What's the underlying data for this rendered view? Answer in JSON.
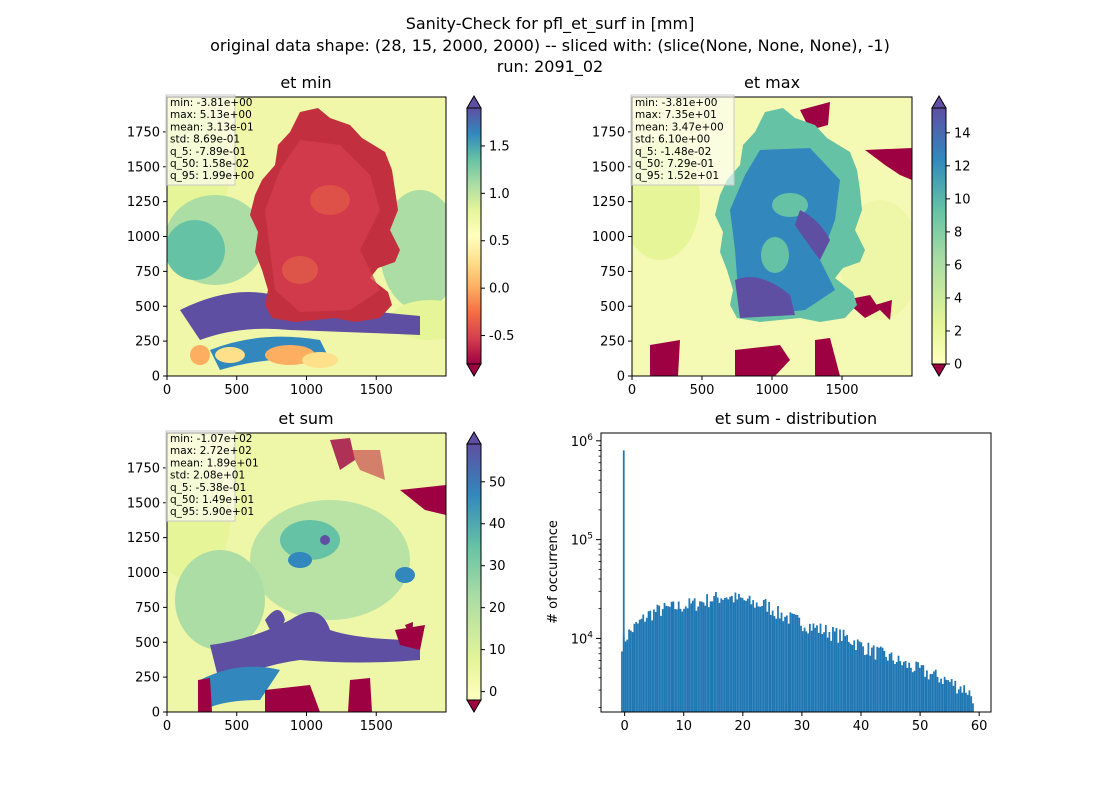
{
  "figure": {
    "title_lines": [
      "Sanity-Check for pfl_et_surf in [mm]",
      "original data shape: (28, 15, 2000, 2000) -- sliced with: (slice(None, None, None), -1)",
      "run: 2091_02"
    ]
  },
  "colors": {
    "spectral_r": [
      "#9e0142",
      "#d53e4f",
      "#f46d43",
      "#fdae61",
      "#fee08b",
      "#ffffbf",
      "#e6f598",
      "#abdda4",
      "#66c2a5",
      "#3288bd",
      "#5e4fa2"
    ],
    "histogram_bar": "#1f77b4"
  },
  "chart_data": [
    {
      "type": "heatmap",
      "title": "et min",
      "image_description_note": "",
      "xlim": [
        0,
        2000
      ],
      "ylim": [
        0,
        2000
      ],
      "xticks": [
        "0",
        "500",
        "1000",
        "1500"
      ],
      "yticks": [
        "0",
        "250",
        "500",
        "750",
        "1000",
        "1250",
        "1500",
        "1750"
      ],
      "colorbar": {
        "vmin": -0.8,
        "vmax": 1.9,
        "ticks": [
          "-0.5",
          "0.0",
          "0.5",
          "1.0",
          "1.5"
        ],
        "tick_values": [
          -0.5,
          0.0,
          0.5,
          1.0,
          1.5
        ],
        "extend": "both"
      },
      "stats": [
        "min: -3.81e+00",
        "max: 5.13e+00",
        "mean: 3.13e-01",
        "std: 8.69e-01",
        "q_5: -7.89e-01",
        "q_50: 1.58e-02",
        "q_95: 1.99e+00"
      ]
    },
    {
      "type": "heatmap",
      "title": "et max",
      "xlim": [
        0,
        2000
      ],
      "ylim": [
        0,
        2000
      ],
      "xticks": [
        "0",
        "500",
        "1000",
        "1500"
      ],
      "yticks": [
        "0",
        "250",
        "500",
        "750",
        "1000",
        "1250",
        "1500",
        "1750"
      ],
      "colorbar": {
        "vmin": 0,
        "vmax": 15.5,
        "ticks": [
          "0",
          "2",
          "4",
          "6",
          "8",
          "10",
          "12",
          "14"
        ],
        "tick_values": [
          0,
          2,
          4,
          6,
          8,
          10,
          12,
          14
        ],
        "extend": "both"
      },
      "stats": [
        "min: -3.81e+00",
        "max: 7.35e+01",
        "mean: 3.47e+00",
        "std: 6.10e+00",
        "q_5: -1.48e-02",
        "q_50: 7.29e-01",
        "q_95: 1.52e+01"
      ]
    },
    {
      "type": "heatmap",
      "title": "et sum",
      "xlim": [
        0,
        2000
      ],
      "ylim": [
        0,
        2000
      ],
      "xticks": [
        "0",
        "500",
        "1000",
        "1500"
      ],
      "yticks": [
        "0",
        "250",
        "500",
        "750",
        "1000",
        "1250",
        "1500",
        "1750"
      ],
      "colorbar": {
        "vmin": -2,
        "vmax": 59,
        "ticks": [
          "0",
          "10",
          "20",
          "30",
          "40",
          "50"
        ],
        "tick_values": [
          0,
          10,
          20,
          30,
          40,
          50
        ],
        "extend": "both"
      },
      "stats": [
        "min: -1.07e+02",
        "max: 2.72e+02",
        "mean: 1.89e+01",
        "std: 2.08e+01",
        "q_5: -5.38e-01",
        "q_50: 1.49e+01",
        "q_95: 5.90e+01"
      ]
    },
    {
      "type": "bar",
      "title": "et sum - distribution",
      "ylabel": "# of occurrence",
      "yscale": "log",
      "xlim": [
        -4,
        62
      ],
      "ylim": [
        1800,
        1200000
      ],
      "xticks": [
        "0",
        "10",
        "20",
        "30",
        "40",
        "50",
        "60"
      ],
      "xtick_values": [
        0,
        10,
        20,
        30,
        40,
        50,
        60
      ],
      "yticks": [
        "10^4",
        "10^5",
        "10^6"
      ],
      "ytick_values": [
        10000,
        100000,
        1000000
      ],
      "bin_width": 0.3,
      "bin_start": -0.6,
      "spike": {
        "x": 0,
        "value": 800000
      },
      "anchors": [
        [
          -0.3,
          9000
        ],
        [
          0.5,
          11000
        ],
        [
          2,
          13500
        ],
        [
          4,
          17500
        ],
        [
          6,
          19500
        ],
        [
          8,
          20500
        ],
        [
          10,
          21500
        ],
        [
          12,
          22500
        ],
        [
          14,
          24500
        ],
        [
          16,
          26000
        ],
        [
          17,
          27000
        ],
        [
          18,
          26000
        ],
        [
          20,
          24500
        ],
        [
          22,
          22500
        ],
        [
          24,
          22000
        ],
        [
          26,
          18000
        ],
        [
          28,
          16000
        ],
        [
          30,
          14500
        ],
        [
          32,
          13000
        ],
        [
          34,
          12000
        ],
        [
          36,
          11000
        ],
        [
          38,
          10000
        ],
        [
          40,
          8500
        ],
        [
          42,
          7500
        ],
        [
          44,
          6800
        ],
        [
          46,
          6000
        ],
        [
          48,
          5300
        ],
        [
          50,
          4800
        ],
        [
          52,
          4300
        ],
        [
          54,
          3900
        ],
        [
          56,
          3400
        ],
        [
          58,
          3000
        ],
        [
          58.8,
          2600
        ]
      ]
    }
  ]
}
